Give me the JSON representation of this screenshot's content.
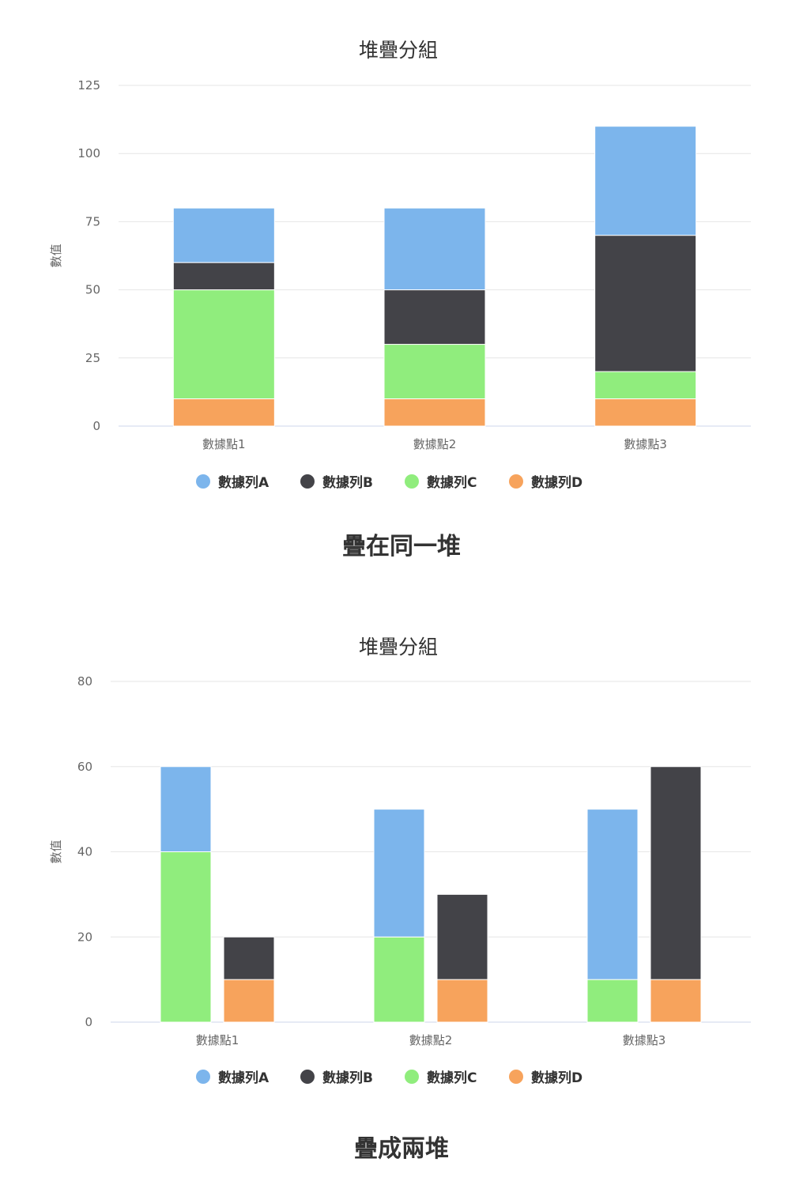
{
  "colors": {
    "series_a": "#7cb5ec",
    "series_b": "#434348",
    "series_c": "#90ed7d",
    "series_d": "#f7a35c",
    "grid": "#e6e6e6",
    "axis": "#ccd6eb"
  },
  "chart_data": [
    {
      "type": "bar",
      "stacked": true,
      "title": "堆疊分組",
      "ylabel": "數值",
      "caption": "疊在同一堆",
      "ylim": [
        0,
        125
      ],
      "yticks": [
        0,
        25,
        50,
        75,
        100,
        125
      ],
      "yticks_labels": [
        "0",
        "25",
        "50",
        "75",
        "100",
        "125"
      ],
      "categories": [
        "數據點1",
        "數據點2",
        "數據點3"
      ],
      "legend": [
        "數據列A",
        "數據列B",
        "數據列C",
        "數據列D"
      ],
      "series": [
        {
          "name": "數據列A",
          "color": "#7cb5ec",
          "stack": "all",
          "values": [
            20,
            30,
            40
          ]
        },
        {
          "name": "數據列B",
          "color": "#434348",
          "stack": "all",
          "values": [
            10,
            20,
            50
          ]
        },
        {
          "name": "數據列C",
          "color": "#90ed7d",
          "stack": "all",
          "values": [
            40,
            20,
            10
          ]
        },
        {
          "name": "數據列D",
          "color": "#f7a35c",
          "stack": "all",
          "values": [
            10,
            10,
            10
          ]
        }
      ]
    },
    {
      "type": "bar",
      "stacked": true,
      "title": "堆疊分組",
      "ylabel": "數值",
      "caption": "疊成兩堆",
      "ylim": [
        0,
        80
      ],
      "yticks": [
        0,
        20,
        40,
        60,
        80
      ],
      "yticks_labels": [
        "0",
        "20",
        "40",
        "60",
        "80"
      ],
      "categories": [
        "數據點1",
        "數據點2",
        "數據點3"
      ],
      "legend": [
        "數據列A",
        "數據列B",
        "數據列C",
        "數據列D"
      ],
      "series": [
        {
          "name": "數據列A",
          "color": "#7cb5ec",
          "stack": "first",
          "values": [
            20,
            30,
            40
          ]
        },
        {
          "name": "數據列B",
          "color": "#434348",
          "stack": "second",
          "values": [
            10,
            20,
            50
          ]
        },
        {
          "name": "數據列C",
          "color": "#90ed7d",
          "stack": "first",
          "values": [
            40,
            20,
            10
          ]
        },
        {
          "name": "數據列D",
          "color": "#f7a35c",
          "stack": "second",
          "values": [
            10,
            10,
            10
          ]
        }
      ]
    }
  ]
}
